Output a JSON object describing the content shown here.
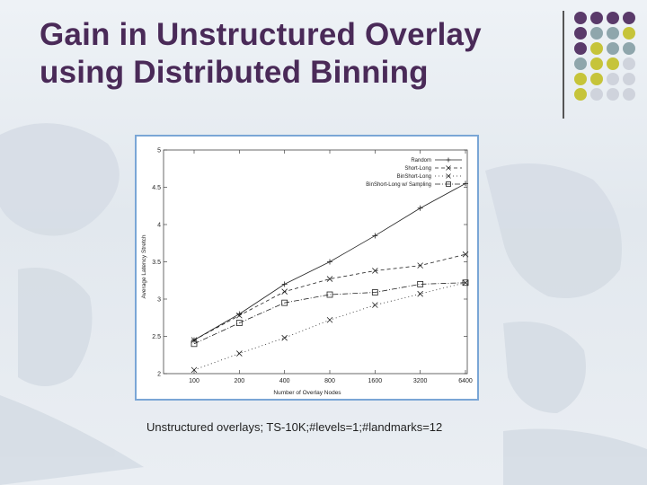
{
  "slide": {
    "title_line1": "Gain in Unstructured Overlay",
    "title_line2": "using Distributed Binning",
    "caption": "Unstructured overlays; TS-10K;#levels=1;#landmarks=12"
  },
  "colors": {
    "title": "#4a2a58",
    "dot_purple": "#5a3a6a",
    "dot_teal": "#8fa6ac",
    "dot_olive": "#c6c43a",
    "dot_light": "#cfd3dc",
    "chart_border": "#7aa6d6"
  },
  "chart_data": {
    "type": "line",
    "title": "",
    "xlabel": "Number of Overlay Nodes",
    "ylabel": "Average Latency Stretch",
    "categories": [
      "100",
      "200",
      "400",
      "800",
      "1600",
      "3200",
      "6400"
    ],
    "ylim": [
      2,
      5
    ],
    "yticks": [
      "2",
      "2.5",
      "3",
      "3.5",
      "4",
      "4.5",
      "5"
    ],
    "legend_position": "top-right",
    "grid": false,
    "series": [
      {
        "name": "Random",
        "marker": "plus",
        "dash": "",
        "values": [
          2.45,
          2.8,
          3.2,
          3.5,
          3.85,
          4.22,
          4.55
        ]
      },
      {
        "name": "Short-Long",
        "marker": "cross",
        "dash": "4,3",
        "values": [
          2.45,
          2.78,
          3.1,
          3.27,
          3.38,
          3.45,
          3.6
        ]
      },
      {
        "name": "BinShort-Long",
        "marker": "cross",
        "dash": "1,3",
        "values": [
          2.05,
          2.27,
          2.48,
          2.72,
          2.92,
          3.07,
          3.22
        ]
      },
      {
        "name": "BinShort-Long w/ Sampling",
        "marker": "square",
        "dash": "6,2,1,2",
        "values": [
          2.4,
          2.68,
          2.95,
          3.06,
          3.09,
          3.2,
          3.22
        ]
      }
    ]
  }
}
